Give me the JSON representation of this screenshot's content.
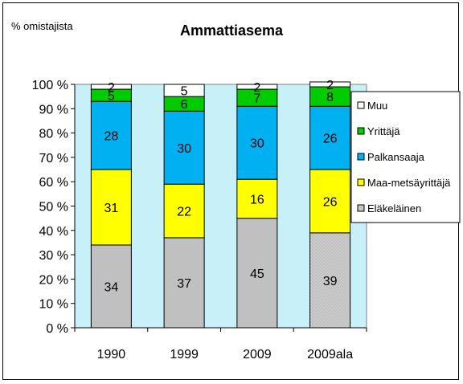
{
  "chart_data": {
    "type": "bar",
    "stacked": true,
    "percent": true,
    "title": "Ammattiasema",
    "ylabel": "% omistajista",
    "xlabel": "",
    "ylim": [
      0,
      100
    ],
    "y_ticks": [
      "0 %",
      "10 %",
      "20 %",
      "30 %",
      "40 %",
      "50 %",
      "60 %",
      "70 %",
      "80 %",
      "90 %",
      "100 %"
    ],
    "categories": [
      "1990",
      "1999",
      "2009",
      "2009ala"
    ],
    "series": [
      {
        "name": "Eläkeläinen",
        "values": [
          34,
          37,
          45,
          39
        ],
        "color": "#c0c0c0"
      },
      {
        "name": "Maa-metsäyrittäjä",
        "values": [
          31,
          22,
          16,
          26
        ],
        "color": "#ffff00"
      },
      {
        "name": "Palkansaaja",
        "values": [
          28,
          30,
          30,
          26
        ],
        "color": "#00b0f0"
      },
      {
        "name": "Yrittäjä",
        "values": [
          5,
          6,
          7,
          8
        ],
        "color": "#00cc00"
      },
      {
        "name": "Muu",
        "values": [
          2,
          5,
          2,
          2
        ],
        "color": "#ffffff"
      }
    ],
    "plot_background": "#c8f0f8",
    "legend": "right",
    "grid": false
  }
}
